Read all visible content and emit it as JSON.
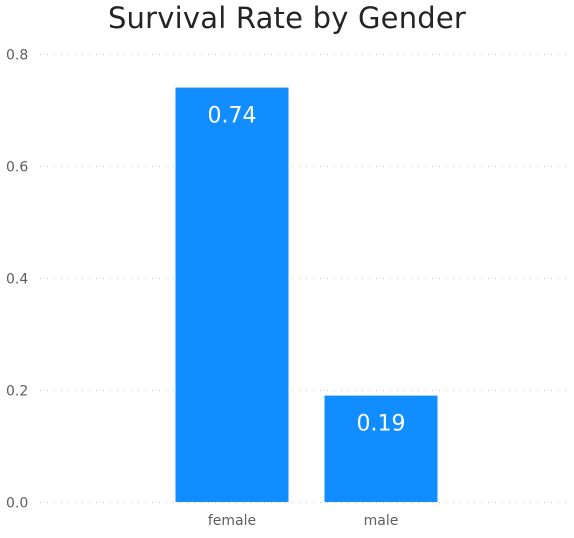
{
  "chart_data": {
    "type": "bar",
    "title": "Survival Rate by Gender",
    "xlabel": "",
    "ylabel": "",
    "categories": [
      "female",
      "male"
    ],
    "values": [
      0.74,
      0.19
    ],
    "data_labels": [
      "0.74",
      "0.19"
    ],
    "ylim": [
      0,
      0.8
    ],
    "yticks": [
      0.0,
      0.2,
      0.4,
      0.6,
      0.8
    ],
    "ytick_labels": [
      "0.0",
      "0.2",
      "0.4",
      "0.6",
      "0.8"
    ],
    "grid": true,
    "legend": "none",
    "colors": {
      "bar": "#118dff",
      "label_inside": "#ffffff",
      "label_outside": "#605e5c",
      "title": "#252423"
    }
  }
}
